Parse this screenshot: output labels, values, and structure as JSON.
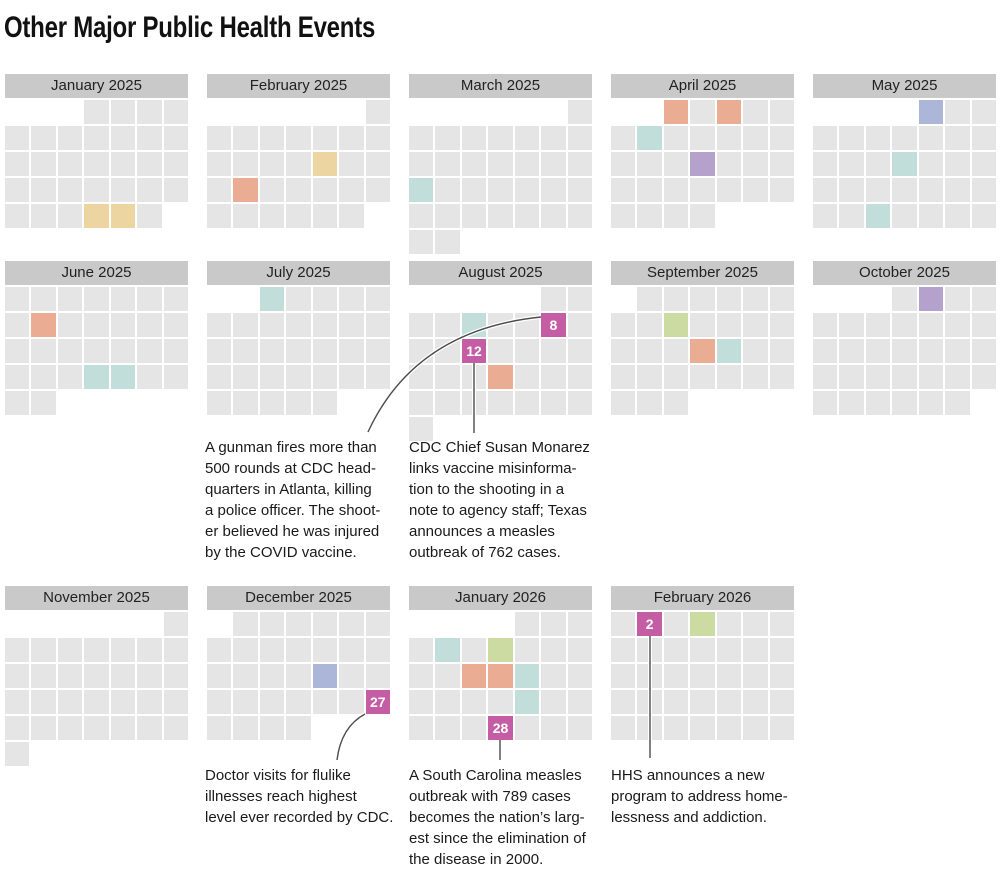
{
  "title": "Other Major Public Health Events",
  "colors": {
    "day": "#e5e5e5",
    "header_bg": "#c9c9c9",
    "tan": "#edd5a1",
    "salmon": "#eaac92",
    "teal": "#c1dedb",
    "green": "#cbdba2",
    "purple": "#b4a2cd",
    "blue": "#abb6d8",
    "magenta": "#c45da4",
    "line": "#4d4d4d"
  },
  "months": [
    {
      "label": "January 2025",
      "grid_row": 0,
      "grid_col": 0,
      "weeks": [
        [
          "",
          "",
          "",
          "d",
          "d",
          "d",
          "d"
        ],
        [
          "d",
          "d",
          "d",
          "d",
          "d",
          "d",
          "d"
        ],
        [
          "d",
          "d",
          "d",
          "d",
          "d",
          "d",
          "d"
        ],
        [
          "d",
          "d",
          "d",
          "d",
          "d",
          "d",
          "d"
        ],
        [
          "d",
          "d",
          "d",
          "t",
          "t",
          "d",
          ""
        ]
      ]
    },
    {
      "label": "February 2025",
      "grid_row": 0,
      "grid_col": 1,
      "weeks": [
        [
          "",
          "",
          "",
          "",
          "",
          "",
          "d"
        ],
        [
          "d",
          "d",
          "d",
          "d",
          "d",
          "d",
          "d"
        ],
        [
          "d",
          "d",
          "d",
          "d",
          "t",
          "d",
          "d"
        ],
        [
          "d",
          "s",
          "d",
          "d",
          "d",
          "d",
          "d"
        ],
        [
          "d",
          "d",
          "d",
          "d",
          "d",
          "d",
          ""
        ]
      ]
    },
    {
      "label": "March 2025",
      "grid_row": 0,
      "grid_col": 2,
      "weeks": [
        [
          "",
          "",
          "",
          "",
          "",
          "",
          "d"
        ],
        [
          "d",
          "d",
          "d",
          "d",
          "d",
          "d",
          "d"
        ],
        [
          "d",
          "d",
          "d",
          "d",
          "d",
          "d",
          "d"
        ],
        [
          "c",
          "d",
          "d",
          "d",
          "d",
          "d",
          "d"
        ],
        [
          "d",
          "d",
          "d",
          "d",
          "d",
          "d",
          "d"
        ],
        [
          "d",
          "d",
          "",
          "",
          "",
          "",
          ""
        ]
      ]
    },
    {
      "label": "April 2025",
      "grid_row": 0,
      "grid_col": 3,
      "weeks": [
        [
          "",
          "",
          "s",
          "d",
          "s",
          "d",
          "d"
        ],
        [
          "d",
          "c",
          "d",
          "d",
          "d",
          "d",
          "d"
        ],
        [
          "d",
          "d",
          "d",
          "p",
          "d",
          "d",
          "d"
        ],
        [
          "d",
          "d",
          "d",
          "d",
          "d",
          "d",
          "d"
        ],
        [
          "d",
          "d",
          "d",
          "d",
          "",
          "",
          ""
        ]
      ]
    },
    {
      "label": "May 2025",
      "grid_row": 0,
      "grid_col": 4,
      "weeks": [
        [
          "",
          "",
          "",
          "",
          "b",
          "d",
          "d"
        ],
        [
          "d",
          "d",
          "d",
          "d",
          "d",
          "d",
          "d"
        ],
        [
          "d",
          "d",
          "d",
          "c",
          "d",
          "d",
          "d"
        ],
        [
          "d",
          "d",
          "d",
          "d",
          "d",
          "d",
          "d"
        ],
        [
          "d",
          "d",
          "c",
          "d",
          "d",
          "d",
          "d"
        ]
      ]
    },
    {
      "label": "June 2025",
      "grid_row": 1,
      "grid_col": 0,
      "weeks": [
        [
          "d",
          "d",
          "d",
          "d",
          "d",
          "d",
          "d"
        ],
        [
          "d",
          "s",
          "d",
          "d",
          "d",
          "d",
          "d"
        ],
        [
          "d",
          "d",
          "d",
          "d",
          "d",
          "d",
          "d"
        ],
        [
          "d",
          "d",
          "d",
          "c",
          "c",
          "d",
          "d"
        ],
        [
          "d",
          "d",
          "",
          "",
          "",
          "",
          ""
        ]
      ]
    },
    {
      "label": "July 2025",
      "grid_row": 1,
      "grid_col": 1,
      "weeks": [
        [
          "",
          "",
          "c",
          "d",
          "d",
          "d",
          "d"
        ],
        [
          "d",
          "d",
          "d",
          "d",
          "d",
          "d",
          "d"
        ],
        [
          "d",
          "d",
          "d",
          "d",
          "d",
          "d",
          "d"
        ],
        [
          "d",
          "d",
          "d",
          "d",
          "d",
          "d",
          "d"
        ],
        [
          "d",
          "d",
          "d",
          "d",
          "d",
          "",
          ""
        ]
      ]
    },
    {
      "label": "August 2025",
      "grid_row": 1,
      "grid_col": 2,
      "weeks": [
        [
          "",
          "",
          "",
          "",
          "",
          "d",
          "d"
        ],
        [
          "d",
          "d",
          "c",
          "d",
          "d",
          "m8",
          "d"
        ],
        [
          "d",
          "d",
          "m12",
          "d",
          "d",
          "d",
          "d"
        ],
        [
          "d",
          "d",
          "d",
          "s",
          "d",
          "d",
          "d"
        ],
        [
          "d",
          "d",
          "d",
          "d",
          "d",
          "d",
          "d"
        ],
        [
          "d",
          "",
          "",
          "",
          "",
          "",
          ""
        ]
      ]
    },
    {
      "label": "September 2025",
      "grid_row": 1,
      "grid_col": 3,
      "weeks": [
        [
          "",
          "d",
          "d",
          "d",
          "d",
          "d",
          "d"
        ],
        [
          "d",
          "d",
          "g",
          "d",
          "d",
          "d",
          "d"
        ],
        [
          "d",
          "d",
          "d",
          "s",
          "c",
          "d",
          "d"
        ],
        [
          "d",
          "d",
          "d",
          "d",
          "d",
          "d",
          "d"
        ],
        [
          "d",
          "d",
          "d",
          "",
          "",
          "",
          ""
        ]
      ]
    },
    {
      "label": "October 2025",
      "grid_row": 1,
      "grid_col": 4,
      "weeks": [
        [
          "",
          "",
          "",
          "d",
          "p",
          "d",
          "d"
        ],
        [
          "d",
          "d",
          "d",
          "d",
          "d",
          "d",
          "d"
        ],
        [
          "d",
          "d",
          "d",
          "d",
          "d",
          "d",
          "d"
        ],
        [
          "d",
          "d",
          "d",
          "d",
          "d",
          "d",
          "d"
        ],
        [
          "d",
          "d",
          "d",
          "d",
          "d",
          "d",
          ""
        ]
      ]
    },
    {
      "label": "November 2025",
      "grid_row": 2,
      "grid_col": 0,
      "weeks": [
        [
          "",
          "",
          "",
          "",
          "",
          "",
          "d"
        ],
        [
          "d",
          "d",
          "d",
          "d",
          "d",
          "d",
          "d"
        ],
        [
          "d",
          "d",
          "d",
          "d",
          "d",
          "d",
          "d"
        ],
        [
          "d",
          "d",
          "d",
          "d",
          "d",
          "d",
          "d"
        ],
        [
          "d",
          "d",
          "d",
          "d",
          "d",
          "d",
          "d"
        ],
        [
          "d",
          "",
          "",
          "",
          "",
          "",
          ""
        ]
      ]
    },
    {
      "label": "December 2025",
      "grid_row": 2,
      "grid_col": 1,
      "weeks": [
        [
          "",
          "d",
          "d",
          "d",
          "d",
          "d",
          "d"
        ],
        [
          "d",
          "d",
          "d",
          "d",
          "d",
          "d",
          "d"
        ],
        [
          "d",
          "d",
          "d",
          "d",
          "b",
          "d",
          "d"
        ],
        [
          "d",
          "d",
          "d",
          "d",
          "d",
          "d",
          "m27"
        ],
        [
          "d",
          "d",
          "d",
          "d",
          "",
          "",
          ""
        ]
      ]
    },
    {
      "label": "January 2026",
      "grid_row": 2,
      "grid_col": 2,
      "weeks": [
        [
          "",
          "",
          "",
          "",
          "d",
          "d",
          "d"
        ],
        [
          "d",
          "c",
          "d",
          "g",
          "d",
          "d",
          "d"
        ],
        [
          "d",
          "d",
          "s",
          "s",
          "c",
          "d",
          "d"
        ],
        [
          "d",
          "d",
          "d",
          "d",
          "c",
          "d",
          "d"
        ],
        [
          "d",
          "d",
          "d",
          "m28",
          "d",
          "d",
          "d"
        ]
      ]
    },
    {
      "label": "February 2026",
      "grid_row": 2,
      "grid_col": 3,
      "weeks": [
        [
          "d",
          "m2",
          "d",
          "g",
          "d",
          "d",
          "d"
        ],
        [
          "d",
          "d",
          "d",
          "d",
          "d",
          "d",
          "d"
        ],
        [
          "d",
          "d",
          "d",
          "d",
          "d",
          "d",
          "d"
        ],
        [
          "d",
          "d",
          "d",
          "d",
          "d",
          "d",
          "d"
        ],
        [
          "d",
          "d",
          "d",
          "d",
          "d",
          "d",
          "d"
        ]
      ]
    }
  ],
  "annotations": {
    "cdc_shooting": {
      "text": "A gunman fires more than\n500 rounds at CDC head-\nquarters in Atlanta, killing\na police officer. The shoot-\ner believed he was injured\nby the COVID vaccine."
    },
    "monarez": {
      "text": "CDC Chief Susan Monarez\nlinks vaccine misinforma-\ntion to the shooting in a\nnote to agency staff; Texas\nannounces a measles\noutbreak of 762 cases."
    },
    "flu": {
      "text": "Doctor visits for flulike\nillnesses reach highest\nlevel ever recorded by CDC."
    },
    "south_carolina": {
      "text": "A South Carolina measles\noutbreak with 789 cases\nbecomes the nation’s larg-\nest since the elimination of\nthe disease in 2000."
    },
    "hhs": {
      "text": "HHS announces a new\nprogram to address home-\nlessness and addiction."
    }
  },
  "chart_data": {
    "type": "heatmap",
    "title": "Other Major Public Health Events",
    "layout": "calendar small multiples, weeks start Sunday, Jan 2025 - Feb 2026",
    "highlighted_dates": [
      {
        "date": "2025-01-29",
        "color": "tan"
      },
      {
        "date": "2025-01-30",
        "color": "tan"
      },
      {
        "date": "2025-02-13",
        "color": "tan"
      },
      {
        "date": "2025-02-17",
        "color": "salmon"
      },
      {
        "date": "2025-03-16",
        "color": "teal"
      },
      {
        "date": "2025-04-01",
        "color": "salmon"
      },
      {
        "date": "2025-04-03",
        "color": "salmon"
      },
      {
        "date": "2025-04-07",
        "color": "teal"
      },
      {
        "date": "2025-04-16",
        "color": "purple"
      },
      {
        "date": "2025-05-01",
        "color": "blue"
      },
      {
        "date": "2025-05-14",
        "color": "teal"
      },
      {
        "date": "2025-05-27",
        "color": "teal"
      },
      {
        "date": "2025-06-09",
        "color": "salmon"
      },
      {
        "date": "2025-06-25",
        "color": "teal"
      },
      {
        "date": "2025-06-26",
        "color": "teal"
      },
      {
        "date": "2025-07-01",
        "color": "teal"
      },
      {
        "date": "2025-08-05",
        "color": "teal"
      },
      {
        "date": "2025-08-08",
        "color": "magenta",
        "marker_label": "8",
        "note": "A gunman fires more than 500 rounds at CDC headquarters in Atlanta, killing a police officer. The shooter believed he was injured by the COVID vaccine."
      },
      {
        "date": "2025-08-12",
        "color": "magenta",
        "marker_label": "12",
        "note": "CDC Chief Susan Monarez links vaccine misinformation to the shooting in a note to agency staff; Texas announces a measles outbreak of 762 cases."
      },
      {
        "date": "2025-08-20",
        "color": "salmon"
      },
      {
        "date": "2025-09-09",
        "color": "green"
      },
      {
        "date": "2025-09-17",
        "color": "salmon"
      },
      {
        "date": "2025-09-18",
        "color": "teal"
      },
      {
        "date": "2025-10-02",
        "color": "purple"
      },
      {
        "date": "2025-12-18",
        "color": "blue"
      },
      {
        "date": "2025-12-27",
        "color": "magenta",
        "marker_label": "27",
        "note": "Doctor visits for flulike illnesses reach highest level ever recorded by CDC."
      },
      {
        "date": "2026-01-05",
        "color": "teal"
      },
      {
        "date": "2026-01-07",
        "color": "green"
      },
      {
        "date": "2026-01-13",
        "color": "salmon"
      },
      {
        "date": "2026-01-14",
        "color": "salmon"
      },
      {
        "date": "2026-01-15",
        "color": "teal"
      },
      {
        "date": "2026-01-22",
        "color": "teal"
      },
      {
        "date": "2026-01-28",
        "color": "magenta",
        "marker_label": "28",
        "note": "A South Carolina measles outbreak with 789 cases becomes the nation’s largest since the elimination of the disease in 2000."
      },
      {
        "date": "2026-02-02",
        "color": "magenta",
        "marker_label": "2",
        "note": "HHS announces a new program to address homelessness and addiction."
      },
      {
        "date": "2026-02-04",
        "color": "green"
      }
    ]
  }
}
